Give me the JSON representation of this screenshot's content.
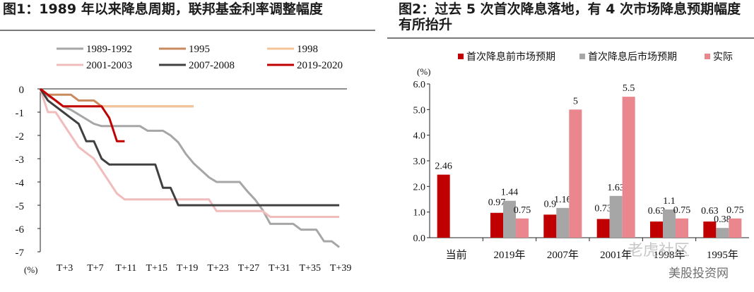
{
  "chart_data": [
    {
      "type": "line",
      "title": "图1：1989 年以来降息周期，联邦基金利率调整幅度",
      "ylabel": "(%)",
      "ylim": [
        -7,
        0
      ],
      "yticks": [
        "0",
        "-1",
        "-2",
        "-3",
        "-4",
        "-5",
        "-6",
        "-7"
      ],
      "xlim": [
        0,
        40
      ],
      "x_tick_labels": [
        "T+3",
        "T+7",
        "T+11",
        "T+15",
        "T+19",
        "T+23",
        "T+27",
        "T+31",
        "T+35",
        "T+39"
      ],
      "x_tick_values": [
        3,
        7,
        11,
        15,
        19,
        23,
        27,
        31,
        35,
        39
      ],
      "legend": "top, 3 columns",
      "series": [
        {
          "name": "1989-1992",
          "color": "#a6a6a6",
          "points": [
            [
              0,
              0
            ],
            [
              1,
              -0.3
            ],
            [
              2,
              -0.5
            ],
            [
              3,
              -0.75
            ],
            [
              4,
              -0.9
            ],
            [
              5,
              -1.1
            ],
            [
              6,
              -1.3
            ],
            [
              7,
              -1.5
            ],
            [
              8,
              -1.6
            ],
            [
              9,
              -1.6
            ],
            [
              10,
              -1.6
            ],
            [
              11,
              -1.6
            ],
            [
              12,
              -1.6
            ],
            [
              13,
              -1.6
            ],
            [
              14,
              -1.8
            ],
            [
              15,
              -1.8
            ],
            [
              16,
              -1.8
            ],
            [
              17,
              -2.0
            ],
            [
              18,
              -2.3
            ],
            [
              19,
              -2.8
            ],
            [
              20,
              -3.2
            ],
            [
              21,
              -3.5
            ],
            [
              22,
              -3.8
            ],
            [
              23,
              -4.0
            ],
            [
              24,
              -4.0
            ],
            [
              25,
              -4.0
            ],
            [
              26,
              -4.0
            ],
            [
              27,
              -4.4
            ],
            [
              28,
              -4.75
            ],
            [
              29,
              -5.2
            ],
            [
              30,
              -5.8
            ],
            [
              31,
              -5.8
            ],
            [
              32,
              -5.8
            ],
            [
              33,
              -5.8
            ],
            [
              34,
              -6.05
            ],
            [
              35,
              -6.05
            ],
            [
              36,
              -6.05
            ],
            [
              37,
              -6.55
            ],
            [
              38,
              -6.55
            ],
            [
              39,
              -6.8
            ]
          ]
        },
        {
          "name": "1995",
          "color": "#c98a5e",
          "points": [
            [
              0,
              0
            ],
            [
              1,
              -0.25
            ],
            [
              2,
              -0.25
            ],
            [
              3,
              -0.25
            ],
            [
              4,
              -0.25
            ],
            [
              5,
              -0.5
            ],
            [
              6,
              -0.5
            ],
            [
              7,
              -0.5
            ],
            [
              8,
              -0.75
            ],
            [
              9,
              -0.75
            ],
            [
              10,
              -0.75
            ],
            [
              11,
              -0.75
            ],
            [
              12,
              -0.75
            ],
            [
              13,
              -0.75
            ],
            [
              14,
              -0.75
            ],
            [
              15,
              -0.75
            ],
            [
              16,
              -0.75
            ],
            [
              17,
              -0.75
            ],
            [
              18,
              -0.75
            ],
            [
              19,
              -0.75
            ],
            [
              20,
              -0.75
            ]
          ]
        },
        {
          "name": "1998",
          "color": "#f4c49a",
          "points": [
            [
              0,
              0
            ],
            [
              1,
              -0.25
            ],
            [
              2,
              -0.5
            ],
            [
              3,
              -0.75
            ],
            [
              4,
              -0.75
            ],
            [
              5,
              -0.75
            ],
            [
              6,
              -0.75
            ],
            [
              7,
              -0.75
            ],
            [
              8,
              -0.75
            ],
            [
              9,
              -0.75
            ],
            [
              10,
              -0.75
            ],
            [
              11,
              -0.75
            ],
            [
              12,
              -0.75
            ],
            [
              13,
              -0.75
            ],
            [
              14,
              -0.75
            ],
            [
              15,
              -0.75
            ],
            [
              16,
              -0.75
            ],
            [
              17,
              -0.75
            ],
            [
              18,
              -0.75
            ],
            [
              19,
              -0.75
            ],
            [
              20,
              -0.75
            ]
          ]
        },
        {
          "name": "2001-2003",
          "color": "#f0bcbc",
          "points": [
            [
              0,
              0
            ],
            [
              1,
              -1.0
            ],
            [
              2,
              -1.0
            ],
            [
              3,
              -1.5
            ],
            [
              4,
              -2.0
            ],
            [
              5,
              -2.5
            ],
            [
              6,
              -2.75
            ],
            [
              7,
              -3.0
            ],
            [
              8,
              -3.5
            ],
            [
              9,
              -4.0
            ],
            [
              10,
              -4.5
            ],
            [
              11,
              -4.75
            ],
            [
              12,
              -4.75
            ],
            [
              13,
              -4.75
            ],
            [
              14,
              -4.75
            ],
            [
              15,
              -4.75
            ],
            [
              16,
              -4.75
            ],
            [
              17,
              -4.75
            ],
            [
              18,
              -4.75
            ],
            [
              19,
              -4.75
            ],
            [
              20,
              -4.75
            ],
            [
              21,
              -4.75
            ],
            [
              22,
              -4.75
            ],
            [
              23,
              -5.25
            ],
            [
              24,
              -5.25
            ],
            [
              25,
              -5.25
            ],
            [
              26,
              -5.25
            ],
            [
              27,
              -5.25
            ],
            [
              28,
              -5.25
            ],
            [
              29,
              -5.25
            ],
            [
              30,
              -5.5
            ],
            [
              31,
              -5.5
            ],
            [
              32,
              -5.5
            ],
            [
              33,
              -5.5
            ],
            [
              34,
              -5.5
            ],
            [
              35,
              -5.5
            ],
            [
              36,
              -5.5
            ],
            [
              37,
              -5.5
            ],
            [
              38,
              -5.5
            ],
            [
              39,
              -5.5
            ]
          ]
        },
        {
          "name": "2007-2008",
          "color": "#404040",
          "points": [
            [
              0,
              0
            ],
            [
              1,
              -0.5
            ],
            [
              2,
              -0.75
            ],
            [
              3,
              -1.0
            ],
            [
              4,
              -1.25
            ],
            [
              5,
              -1.5
            ],
            [
              6,
              -2.25
            ],
            [
              7,
              -2.25
            ],
            [
              8,
              -3.0
            ],
            [
              9,
              -3.25
            ],
            [
              10,
              -3.25
            ],
            [
              11,
              -3.25
            ],
            [
              12,
              -3.25
            ],
            [
              13,
              -3.25
            ],
            [
              14,
              -3.25
            ],
            [
              15,
              -3.25
            ],
            [
              16,
              -4.25
            ],
            [
              17,
              -4.25
            ],
            [
              18,
              -5.0
            ],
            [
              19,
              -5.0
            ],
            [
              20,
              -5.0
            ],
            [
              21,
              -5.0
            ],
            [
              22,
              -5.0
            ],
            [
              23,
              -5.0
            ],
            [
              24,
              -5.0
            ],
            [
              25,
              -5.0
            ],
            [
              26,
              -5.0
            ],
            [
              27,
              -5.0
            ],
            [
              28,
              -5.0
            ],
            [
              29,
              -5.0
            ],
            [
              30,
              -5.0
            ],
            [
              31,
              -5.0
            ],
            [
              32,
              -5.0
            ],
            [
              33,
              -5.0
            ],
            [
              34,
              -5.0
            ],
            [
              35,
              -5.0
            ],
            [
              36,
              -5.0
            ],
            [
              37,
              -5.0
            ],
            [
              38,
              -5.0
            ],
            [
              39,
              -5.0
            ]
          ]
        },
        {
          "name": "2019-2020",
          "color": "#c00000",
          "points": [
            [
              0,
              0
            ],
            [
              1,
              -0.25
            ],
            [
              2,
              -0.5
            ],
            [
              3,
              -0.75
            ],
            [
              4,
              -0.75
            ],
            [
              5,
              -0.75
            ],
            [
              6,
              -0.75
            ],
            [
              7,
              -0.75
            ],
            [
              8,
              -0.75
            ],
            [
              9,
              -1.25
            ],
            [
              10,
              -2.25
            ],
            [
              11,
              -2.25
            ]
          ]
        }
      ]
    },
    {
      "type": "bar",
      "title": "图2：过去 5 次首次降息落地，有 4 次市场降息预期幅度有所抬升",
      "ylabel": "(%)",
      "ylim": [
        0,
        6
      ],
      "yticks": [
        "0.0",
        "1.0",
        "2.0",
        "3.0",
        "4.0",
        "5.0",
        "6.0"
      ],
      "categories": [
        "当前",
        "2019年",
        "2007年",
        "2001年",
        "1998年",
        "1995年"
      ],
      "legend": "top",
      "series": [
        {
          "name": "首次降息前市场预期",
          "color": "#c00000",
          "values": [
            2.46,
            0.97,
            0.9,
            0.73,
            0.63,
            0.63
          ]
        },
        {
          "name": "首次降息后市场预期",
          "color": "#a6a6a6",
          "values": [
            null,
            1.44,
            1.16,
            1.63,
            1.1,
            0.38
          ]
        },
        {
          "name": "实际",
          "color": "#e9868e",
          "values": [
            null,
            0.75,
            5,
            5.5,
            0.75,
            0.75
          ]
        }
      ]
    }
  ],
  "watermarks": [
    "老虎社区",
    "美股投资网"
  ]
}
